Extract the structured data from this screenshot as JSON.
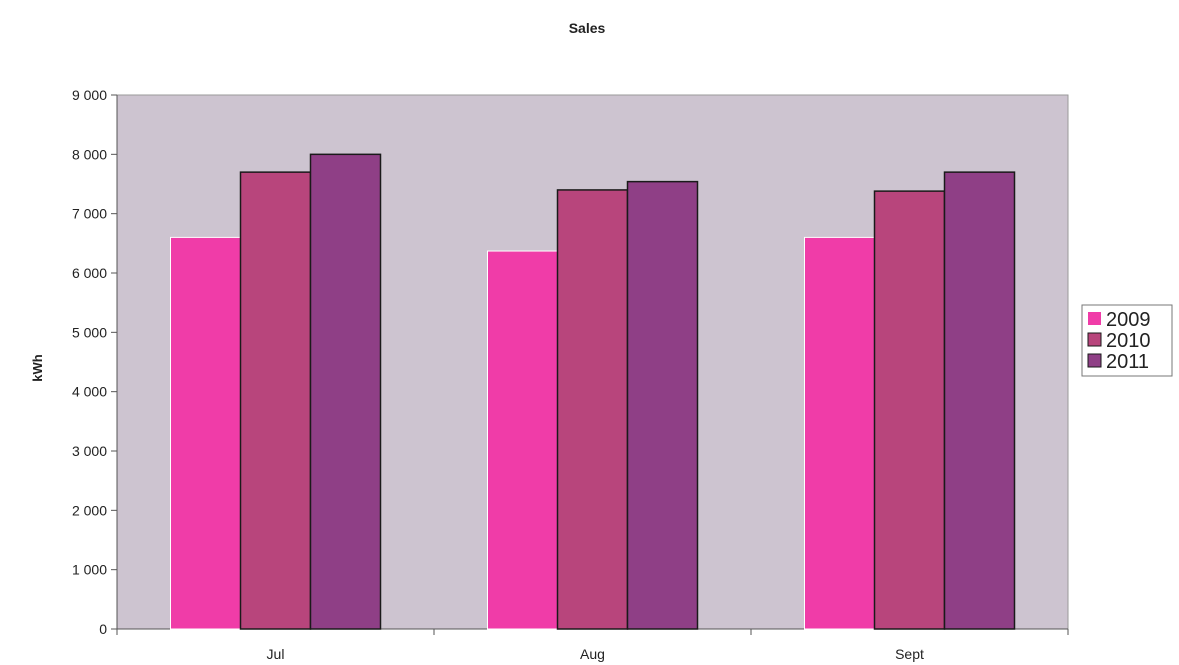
{
  "chart_data": {
    "type": "bar",
    "title": "Sales",
    "xlabel": "",
    "ylabel": "kWh",
    "ylim": [
      0,
      9000
    ],
    "yticks": [
      0,
      1000,
      2000,
      3000,
      4000,
      5000,
      6000,
      7000,
      8000,
      9000
    ],
    "ytick_labels": [
      "0",
      "1 000",
      "2 000",
      "3 000",
      "4 000",
      "5 000",
      "6 000",
      "7 000",
      "8 000",
      "9 000"
    ],
    "categories": [
      "Jul",
      "Aug",
      "Sept"
    ],
    "series": [
      {
        "name": "2009",
        "color": "#f03ca8",
        "values": [
          6600,
          6370,
          6600
        ]
      },
      {
        "name": "2010",
        "color": "#b8457c",
        "values": [
          7700,
          7400,
          7380
        ]
      },
      {
        "name": "2011",
        "color": "#8f3f86",
        "values": [
          8000,
          7540,
          7700
        ]
      }
    ],
    "legend_position": "right",
    "plot_background": "#cdc4d0",
    "grid": false
  }
}
